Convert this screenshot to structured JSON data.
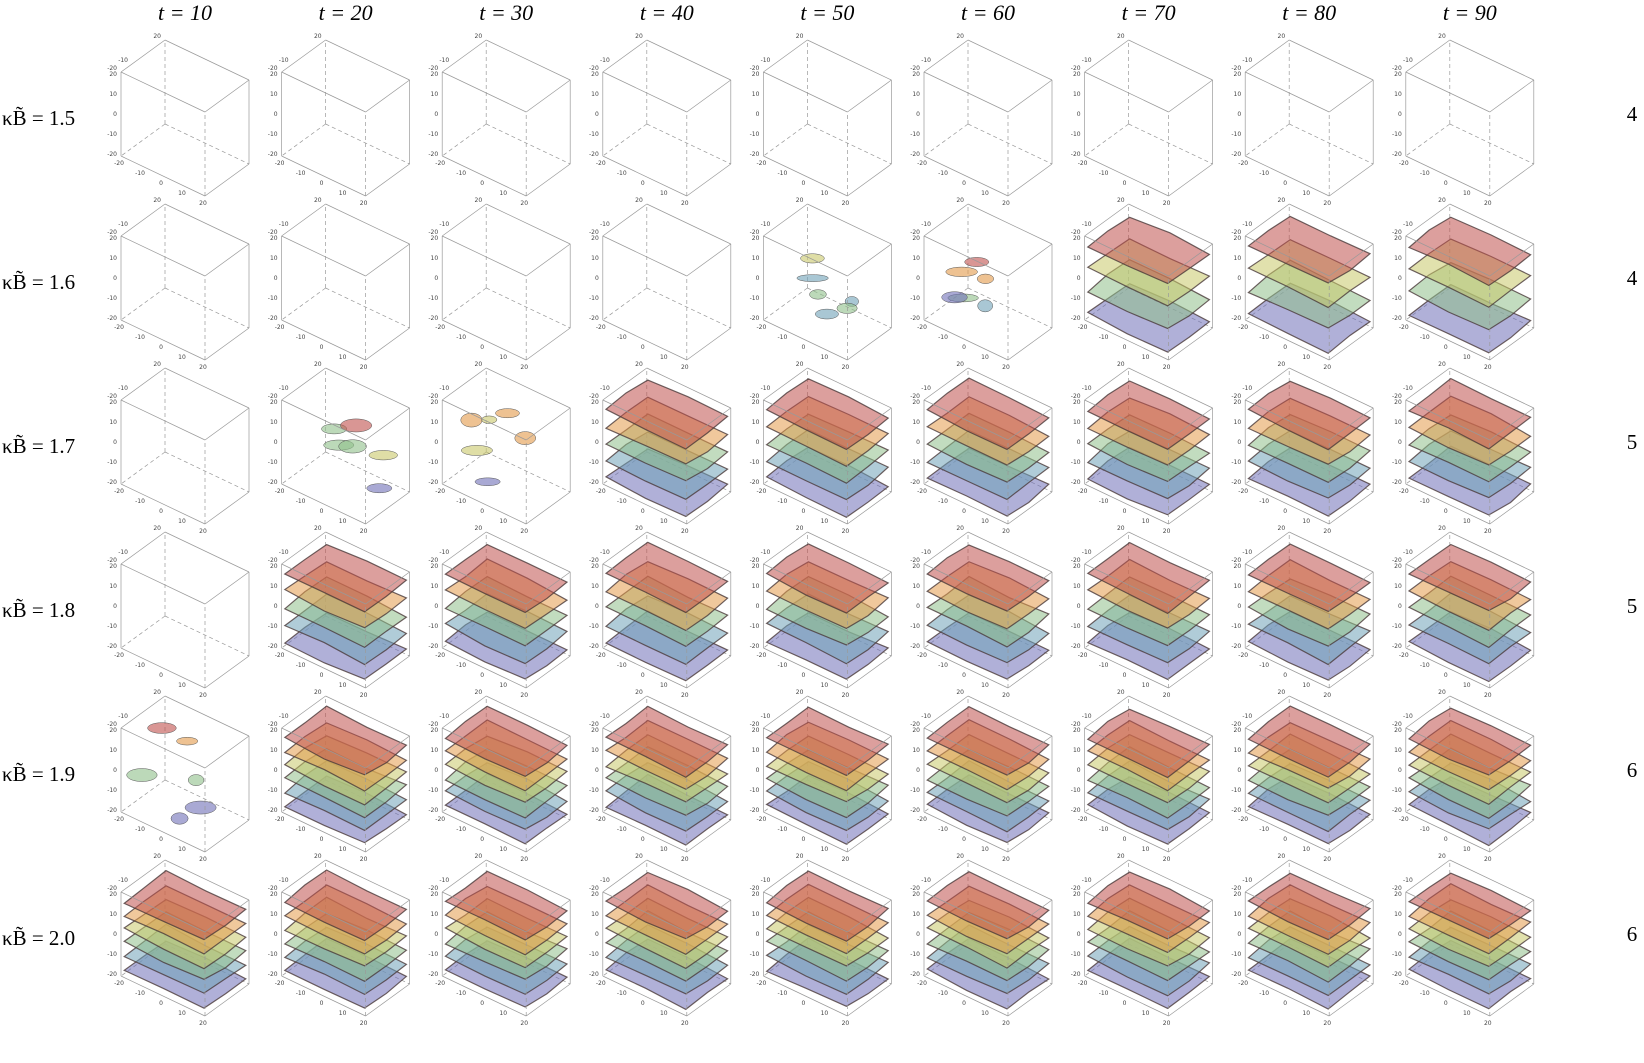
{
  "columns": [
    "t = 10",
    "t = 20",
    "t = 30",
    "t = 40",
    "t = 50",
    "t = 60",
    "t = 70",
    "t = 80",
    "t = 90"
  ],
  "rows": [
    {
      "label": "κB̃ = 1.5",
      "count": 4
    },
    {
      "label": "κB̃ = 1.6",
      "count": 4
    },
    {
      "label": "κB̃ = 1.7",
      "count": 5
    },
    {
      "label": "κB̃ = 1.8",
      "count": 5
    },
    {
      "label": "κB̃ = 1.9",
      "count": 6
    },
    {
      "label": "κB̃ = 2.0",
      "count": 6
    }
  ],
  "panel_axes": {
    "vertical_ticks": [
      20,
      10,
      0,
      -10,
      -20
    ],
    "front_ticks": [
      -20,
      -10,
      0,
      10,
      20
    ],
    "back_ticks": [
      20,
      -10,
      -20
    ]
  }
}
